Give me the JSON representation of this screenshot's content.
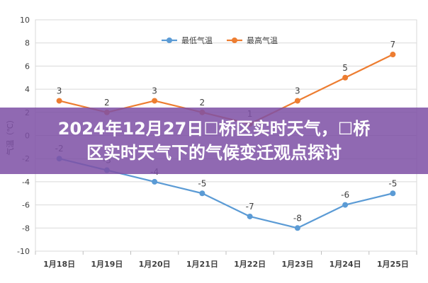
{
  "banner": {
    "line1": "2024年12月27日☐桥区实时天气，☐桥",
    "line2": "区实时天气下的气候变迁观点探讨"
  },
  "chart_data": {
    "type": "line",
    "categories": [
      "1月18日",
      "1月19日",
      "1月20日",
      "1月21日",
      "1月22日",
      "1月23日",
      "1月24日",
      "1月25日"
    ],
    "series": [
      {
        "name": "最低气温",
        "color": "#5b9bd5",
        "values": [
          -2,
          -3,
          -4,
          -5,
          -7,
          -8,
          -6,
          -5
        ]
      },
      {
        "name": "最高气温",
        "color": "#ed7d31",
        "values": [
          3,
          2,
          3,
          2,
          1,
          3,
          5,
          7
        ]
      }
    ],
    "ylabel": "气温（℃）",
    "ylim": [
      -10,
      10
    ],
    "yticks": [
      -10,
      -8,
      -6,
      -4,
      -2,
      0,
      2,
      4,
      6,
      8,
      10
    ],
    "grid": true,
    "legend": "top"
  }
}
